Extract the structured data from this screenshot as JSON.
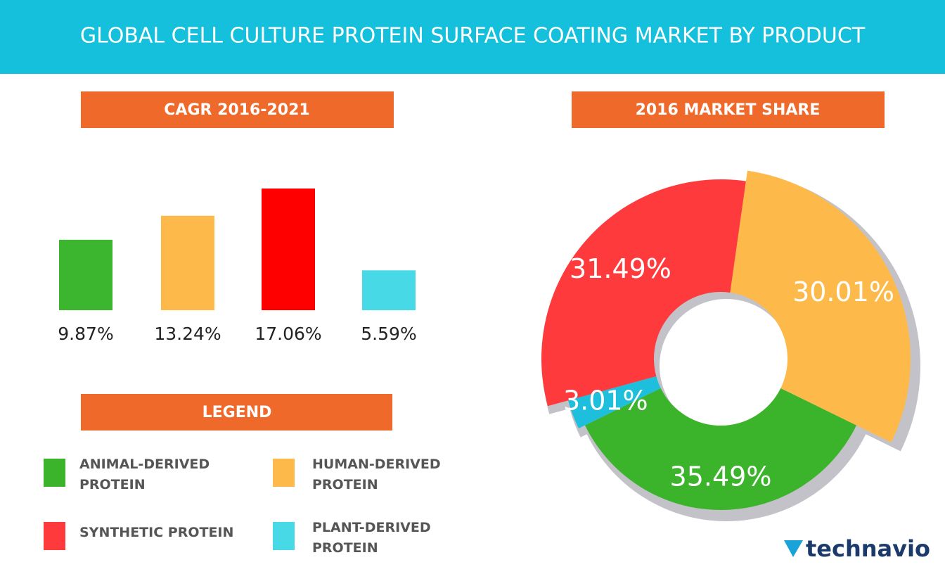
{
  "title": "GLOBAL CELL CULTURE PROTEIN SURFACE COATING MARKET BY PRODUCT",
  "chart_data": [
    {
      "type": "bar",
      "title": "CAGR 2016-2021",
      "values": [
        9.87,
        13.24,
        17.06,
        5.59
      ],
      "value_labels": [
        "9.87%",
        "13.24%",
        "17.06%",
        "5.59%"
      ],
      "colors": [
        "#3cb52f",
        "#fdba4b",
        "#ff0000",
        "#48d9e6"
      ]
    },
    {
      "type": "pie",
      "title": "2016 MARKET SHARE",
      "values": [
        35.49,
        30.01,
        31.49,
        3.01
      ],
      "value_labels": [
        "35.49%",
        "30.01%",
        "31.49%",
        "3.01%"
      ],
      "colors": [
        "#3bb42c",
        "#fdba4b",
        "#fe3a3d",
        "#1dbfdc"
      ]
    }
  ],
  "legend": {
    "title": "LEGEND",
    "items": [
      {
        "label": "ANIMAL-DERIVED PROTEIN",
        "color": "#3bb42c"
      },
      {
        "label": "HUMAN-DERIVED PROTEIN",
        "color": "#fdba4b"
      },
      {
        "label": "SYNTHETIC PROTEIN",
        "color": "#fe3a3d"
      },
      {
        "label": "PLANT-DERIVED PROTEIN",
        "color": "#48d9e6"
      }
    ]
  },
  "brand": "technavio"
}
